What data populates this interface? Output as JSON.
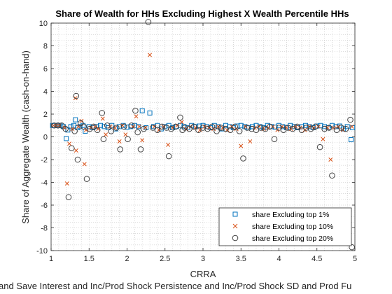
{
  "chart_data": {
    "type": "scatter",
    "title": "Share of Wealth for HHs Excluding Highest X Wealth Percentile HHs",
    "xlabel": "CRRA",
    "ylabel": "Share of Aggregate Wealth (cash-on-hand)",
    "caption": "and Save Interest and Inc/Prod Shock Persistence and Inc/Prod Shock SD and Prod Fu",
    "xlim": [
      1,
      5
    ],
    "ylim": [
      -10,
      10
    ],
    "xticks": [
      "1",
      "1.5",
      "2",
      "2.5",
      "3",
      "3.5",
      "4",
      "4.5",
      "5"
    ],
    "yticks": [
      "-10",
      "-8",
      "-6",
      "-4",
      "-2",
      "0",
      "2",
      "4",
      "6",
      "8",
      "10"
    ],
    "grid": "on (minor dotted)",
    "legend_position": "bottom-right",
    "series": [
      {
        "name": "share Excluding top 1%",
        "marker": "square",
        "color": "#0072BD",
        "x": [
          1.02,
          1.05,
          1.08,
          1.12,
          1.16,
          1.2,
          1.22,
          1.26,
          1.3,
          1.32,
          1.35,
          1.38,
          1.42,
          1.45,
          1.5,
          1.55,
          1.6,
          1.65,
          1.7,
          1.75,
          1.8,
          1.85,
          1.9,
          1.95,
          2.0,
          2.05,
          2.1,
          2.15,
          2.2,
          2.25,
          2.3,
          2.35,
          2.4,
          2.45,
          2.5,
          2.55,
          2.6,
          2.65,
          2.7,
          2.75,
          2.8,
          2.85,
          2.9,
          2.95,
          3.0,
          3.05,
          3.1,
          3.15,
          3.2,
          3.25,
          3.3,
          3.35,
          3.4,
          3.45,
          3.5,
          3.55,
          3.6,
          3.65,
          3.7,
          3.75,
          3.8,
          3.85,
          3.9,
          3.95,
          4.0,
          4.05,
          4.1,
          4.15,
          4.2,
          4.25,
          4.3,
          4.35,
          4.4,
          4.45,
          4.5,
          4.55,
          4.6,
          4.65,
          4.7,
          4.75,
          4.8,
          4.85,
          4.9,
          4.95,
          4.97
        ],
        "y": [
          1.0,
          1.0,
          1.0,
          1.0,
          0.9,
          -0.15,
          0.6,
          0.9,
          1.0,
          1.5,
          0.8,
          0.9,
          1.0,
          0.5,
          0.9,
          0.8,
          0.9,
          1.0,
          0.9,
          0.8,
          1.0,
          0.7,
          0.9,
          1.0,
          0.85,
          0.9,
          1.0,
          0.9,
          2.3,
          0.8,
          2.1,
          0.9,
          1.0,
          0.7,
          0.9,
          1.0,
          0.8,
          0.9,
          1.0,
          0.9,
          0.8,
          1.0,
          0.9,
          0.95,
          1.0,
          0.9,
          0.8,
          1.0,
          0.9,
          0.7,
          1.0,
          0.9,
          0.8,
          0.95,
          1.0,
          0.9,
          0.8,
          0.9,
          1.0,
          0.9,
          0.8,
          1.0,
          0.9,
          0.85,
          1.0,
          0.9,
          0.8,
          1.0,
          0.9,
          0.8,
          0.9,
          1.0,
          0.9,
          0.8,
          0.95,
          1.0,
          0.9,
          0.8,
          1.0,
          0.9,
          0.95,
          0.7,
          0.9,
          -0.25,
          0.8
        ]
      },
      {
        "name": "share Excluding top 10%",
        "marker": "x",
        "color": "#D95319",
        "x": [
          1.03,
          1.07,
          1.11,
          1.18,
          1.21,
          1.24,
          1.28,
          1.32,
          1.33,
          1.36,
          1.4,
          1.44,
          1.46,
          1.52,
          1.58,
          1.62,
          1.68,
          1.72,
          1.78,
          1.84,
          1.9,
          1.94,
          1.98,
          2.08,
          2.12,
          2.16,
          2.2,
          2.24,
          2.3,
          2.36,
          2.42,
          2.48,
          2.54,
          2.6,
          2.66,
          2.72,
          2.78,
          2.84,
          2.9,
          2.96,
          3.02,
          3.08,
          3.14,
          3.2,
          3.26,
          3.32,
          3.38,
          3.44,
          3.5,
          3.56,
          3.62,
          3.68,
          3.74,
          3.8,
          3.86,
          3.92,
          3.98,
          4.04,
          4.1,
          4.16,
          4.22,
          4.28,
          4.34,
          4.4,
          4.46,
          4.52,
          4.58,
          4.64,
          4.68,
          4.72,
          4.78,
          4.84,
          4.9,
          4.96
        ],
        "y": [
          1.0,
          1.0,
          1.0,
          0.8,
          -4.1,
          -0.6,
          0.7,
          3.4,
          -1.2,
          0.9,
          1.4,
          -2.4,
          0.6,
          0.8,
          0.9,
          0.7,
          1.6,
          0.2,
          0.9,
          0.8,
          -0.4,
          1.0,
          0.2,
          0.9,
          1.8,
          0.9,
          -0.3,
          0.8,
          7.2,
          0.9,
          0.6,
          0.9,
          -0.7,
          0.8,
          1.0,
          1.3,
          0.7,
          0.9,
          0.8,
          0.6,
          0.9,
          0.8,
          0.7,
          0.9,
          0.8,
          0.6,
          0.9,
          0.7,
          -0.8,
          0.9,
          -0.4,
          0.8,
          0.9,
          0.7,
          0.8,
          0.9,
          0.6,
          0.9,
          0.8,
          0.7,
          0.9,
          0.8,
          0.6,
          0.9,
          0.8,
          0.9,
          -0.2,
          0.8,
          -2.0,
          0.8,
          0.9,
          0.6,
          -6.5,
          0.9
        ]
      },
      {
        "name": "share Excluding top 20%",
        "marker": "circle",
        "color": "#404040",
        "x": [
          1.04,
          1.09,
          1.14,
          1.19,
          1.23,
          1.27,
          1.31,
          1.33,
          1.35,
          1.39,
          1.43,
          1.47,
          1.51,
          1.56,
          1.61,
          1.67,
          1.69,
          1.74,
          1.79,
          1.86,
          1.91,
          1.96,
          2.01,
          2.06,
          2.11,
          2.14,
          2.18,
          2.22,
          2.28,
          2.34,
          2.4,
          2.46,
          2.52,
          2.55,
          2.58,
          2.64,
          2.7,
          2.73,
          2.76,
          2.82,
          2.88,
          2.94,
          3.0,
          3.06,
          3.12,
          3.18,
          3.24,
          3.3,
          3.36,
          3.42,
          3.48,
          3.53,
          3.58,
          3.64,
          3.7,
          3.76,
          3.82,
          3.88,
          3.94,
          4.0,
          4.06,
          4.12,
          4.18,
          4.24,
          4.3,
          4.36,
          4.42,
          4.48,
          4.54,
          4.6,
          4.66,
          4.7,
          4.76,
          4.82,
          4.88,
          4.94,
          4.96
        ],
        "y": [
          1.0,
          1.0,
          1.0,
          0.7,
          -5.3,
          -1.0,
          0.5,
          3.6,
          -2.0,
          1.2,
          0.9,
          -3.7,
          0.7,
          0.9,
          0.6,
          2.1,
          -0.2,
          1.0,
          0.5,
          0.8,
          -1.1,
          0.9,
          -0.2,
          1.0,
          2.3,
          0.4,
          -1.1,
          0.7,
          10.1,
          0.8,
          0.6,
          0.9,
          0.8,
          -1.7,
          0.7,
          0.9,
          1.7,
          0.6,
          0.8,
          0.7,
          0.9,
          0.6,
          0.8,
          0.7,
          0.9,
          0.5,
          0.8,
          0.7,
          0.6,
          0.9,
          0.5,
          -1.9,
          0.8,
          0.7,
          0.6,
          0.8,
          0.7,
          0.9,
          -0.2,
          0.8,
          0.6,
          0.8,
          0.7,
          0.9,
          0.6,
          0.8,
          0.7,
          0.9,
          -0.9,
          0.7,
          0.8,
          -3.4,
          0.6,
          0.8,
          0.7,
          1.5,
          -9.7
        ]
      }
    ]
  }
}
